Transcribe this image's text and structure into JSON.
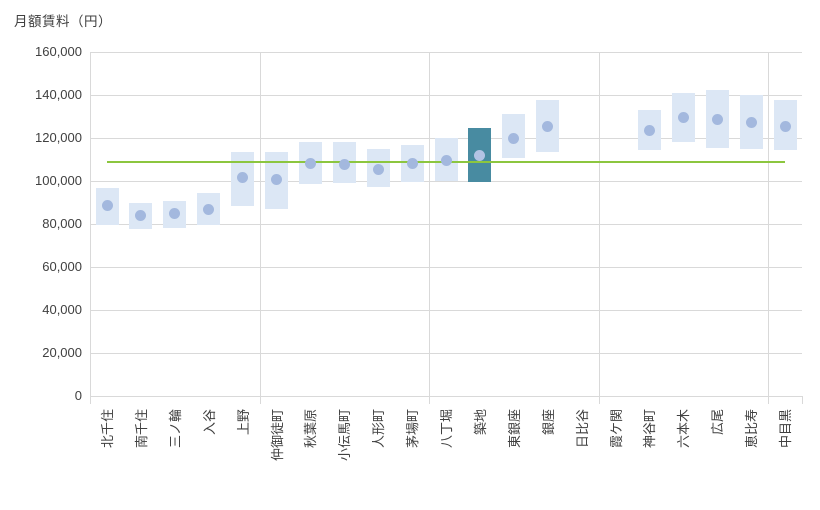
{
  "chart_data": {
    "type": "bar",
    "subtype": "floating-range-bars-with-median-dots",
    "title": "月額賃料（円）",
    "categories": [
      "北千住",
      "南千住",
      "三ノ輪",
      "入谷",
      "上野",
      "仲御徒町",
      "秋葉原",
      "小伝馬町",
      "人形町",
      "茅場町",
      "八丁堀",
      "築地",
      "東銀座",
      "銀座",
      "日比谷",
      "霞ケ関",
      "神谷町",
      "六本木",
      "広尾",
      "恵比寿",
      "中目黒"
    ],
    "series": [
      {
        "name": "range_low",
        "values": [
          79500,
          77500,
          78000,
          79500,
          88500,
          87000,
          98500,
          99000,
          97000,
          99500,
          100000,
          99500,
          110500,
          113500,
          null,
          null,
          114500,
          118000,
          115500,
          115000,
          114500
        ]
      },
      {
        "name": "range_high",
        "values": [
          97000,
          90000,
          90500,
          94500,
          113500,
          113500,
          118000,
          118000,
          115000,
          117000,
          120000,
          124500,
          131000,
          137500,
          null,
          null,
          133000,
          141000,
          142500,
          140000,
          137500
        ]
      },
      {
        "name": "median",
        "values": [
          88500,
          84000,
          85000,
          87000,
          101500,
          100500,
          108000,
          107500,
          105500,
          108000,
          109500,
          112000,
          120000,
          125500,
          null,
          null,
          123500,
          129500,
          128500,
          127000,
          125500
        ]
      }
    ],
    "reference_line": {
      "value": 109000
    },
    "highlight_category": "築地",
    "ylim": [
      0,
      160000
    ],
    "ytick_step": 20000,
    "ytick_labels": [
      "0",
      "20,000",
      "40,000",
      "60,000",
      "80,000",
      "100,000",
      "120,000",
      "140,000",
      "160,000"
    ],
    "grid": "horizontal gridlines every 20,000; vertical separator gridlines every 5 categories",
    "legend": "none",
    "colors": {
      "bar": "#DCE7F5",
      "bar_highlight": "#488BA1",
      "dot": "#A3B8DE",
      "dot_on_highlight": "#B3C3E4",
      "reference_line": "#8CC63F",
      "gridline": "#D9D9D9",
      "text": "#404040"
    }
  }
}
